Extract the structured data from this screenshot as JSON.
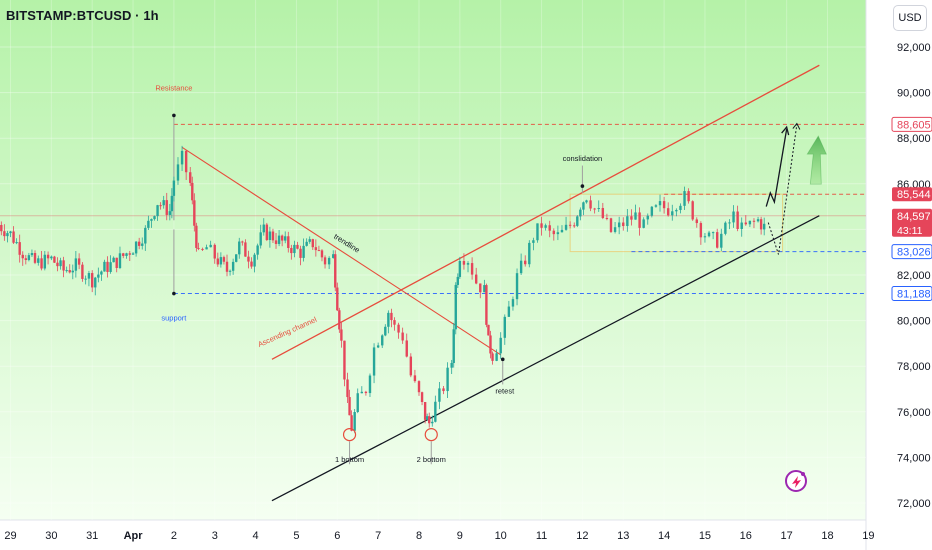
{
  "header": {
    "title": "BITSTAMP:BTCUSD · 1h"
  },
  "toolbar": {
    "currency_label": "USD"
  },
  "colors": {
    "up": "#26a69a",
    "down": "#e5455a",
    "resistance": "#e74c3c",
    "support": "#2962ff",
    "channel_upper": "#e74c3c",
    "channel_lower": "#131722",
    "trendline": "#e74c3c",
    "background_top": "#b5f2a8",
    "background_bottom": "#f5fff2"
  },
  "chart_data": {
    "type": "candlestick",
    "title": "BITSTAMP:BTCUSD · 1h",
    "ylim": [
      71000,
      93500
    ],
    "y_ticks": [
      "92,000",
      "90,000",
      "88,000",
      "86,000",
      "84,000",
      "82,000",
      "80,000",
      "78,000",
      "76,000",
      "74,000",
      "72,000"
    ],
    "x_ticks": [
      "29",
      "30",
      "31",
      "Apr",
      "2",
      "3",
      "4",
      "5",
      "6",
      "7",
      "8",
      "9",
      "10",
      "11",
      "12",
      "13",
      "14",
      "15",
      "16",
      "17",
      "18",
      "19"
    ],
    "series": [
      {
        "points": [
          [
            28.7,
            84200
          ],
          [
            29.0,
            83800
          ],
          [
            29.3,
            83000
          ],
          [
            29.6,
            82500
          ],
          [
            30.0,
            82700
          ],
          [
            30.3,
            82200
          ],
          [
            30.6,
            82400
          ],
          [
            31.0,
            81800
          ],
          [
            31.3,
            82300
          ],
          [
            31.6,
            82600
          ],
          [
            32.0,
            83200
          ],
          [
            32.3,
            83900
          ],
          [
            32.6,
            85200
          ],
          [
            32.9,
            84800
          ],
          [
            33.0,
            86200
          ],
          [
            33.2,
            87100
          ],
          [
            33.4,
            86000
          ],
          [
            33.5,
            84200
          ],
          [
            33.6,
            82800
          ],
          [
            33.8,
            83200
          ],
          [
            34.0,
            82800
          ],
          [
            34.3,
            82200
          ],
          [
            34.6,
            83300
          ],
          [
            34.9,
            82700
          ],
          [
            35.2,
            83900
          ],
          [
            35.5,
            83600
          ],
          [
            35.8,
            83300
          ],
          [
            36.1,
            83000
          ],
          [
            36.4,
            83400
          ],
          [
            36.7,
            82600
          ],
          [
            36.9,
            82800
          ],
          [
            37.0,
            80800
          ],
          [
            37.1,
            79000
          ],
          [
            37.25,
            76300
          ],
          [
            37.35,
            75300
          ],
          [
            37.5,
            76500
          ],
          [
            37.7,
            77000
          ],
          [
            37.9,
            78800
          ],
          [
            38.1,
            79600
          ],
          [
            38.25,
            80400
          ],
          [
            38.4,
            79700
          ],
          [
            38.6,
            79300
          ],
          [
            38.8,
            77600
          ],
          [
            39.0,
            76700
          ],
          [
            39.15,
            75800
          ],
          [
            39.25,
            75500
          ],
          [
            39.4,
            76300
          ],
          [
            39.6,
            77100
          ],
          [
            39.8,
            78200
          ],
          [
            39.9,
            81500
          ],
          [
            40.0,
            82900
          ],
          [
            40.2,
            82700
          ],
          [
            40.4,
            81700
          ],
          [
            40.6,
            81300
          ],
          [
            40.7,
            79000
          ],
          [
            40.8,
            78500
          ],
          [
            41.0,
            79200
          ],
          [
            41.2,
            80500
          ],
          [
            41.4,
            81900
          ],
          [
            41.6,
            82700
          ],
          [
            41.8,
            83700
          ],
          [
            42.0,
            84200
          ],
          [
            42.2,
            83800
          ],
          [
            42.4,
            83700
          ],
          [
            42.6,
            84000
          ],
          [
            42.8,
            84400
          ],
          [
            42.95,
            85100
          ],
          [
            43.1,
            85500
          ],
          [
            43.3,
            84900
          ],
          [
            43.5,
            84500
          ],
          [
            43.7,
            83900
          ],
          [
            43.9,
            84100
          ],
          [
            44.1,
            84400
          ],
          [
            44.3,
            84600
          ],
          [
            44.5,
            84100
          ],
          [
            44.7,
            84700
          ],
          [
            44.9,
            85000
          ],
          [
            45.1,
            84900
          ],
          [
            45.3,
            85200
          ],
          [
            45.5,
            85400
          ],
          [
            45.7,
            84700
          ],
          [
            45.9,
            84000
          ],
          [
            46.1,
            83600
          ],
          [
            46.3,
            83500
          ],
          [
            46.5,
            84000
          ],
          [
            46.7,
            84600
          ],
          [
            46.9,
            84000
          ],
          [
            47.1,
            84200
          ],
          [
            47.3,
            84400
          ],
          [
            47.45,
            84100
          ]
        ]
      }
    ],
    "price_labels": [
      {
        "value": 88605,
        "label": "88,605",
        "kind": "resistance"
      },
      {
        "value": 85544,
        "label": "85,544",
        "kind": "resistance"
      },
      {
        "value": 84597,
        "label": "84,597",
        "kind": "current",
        "countdown": "43:11"
      },
      {
        "value": 83026,
        "label": "83,026",
        "kind": "support"
      },
      {
        "value": 81188,
        "label": "81,188",
        "kind": "support"
      }
    ],
    "annotations": [
      {
        "text": "Resistance",
        "x": 33.0,
        "y": 90100,
        "color": "#e74c3c"
      },
      {
        "text": "support",
        "x": 33.0,
        "y": 80000,
        "color": "#2962ff"
      },
      {
        "text": "trendline",
        "x": 37.2,
        "y": 83300,
        "color": "#131722",
        "rotate": 32
      },
      {
        "text": "Ascending channel",
        "x": 35.8,
        "y": 79400,
        "color": "#e74c3c",
        "rotate": -24
      },
      {
        "text": "conslidation",
        "x": 43.0,
        "y": 87000,
        "color": "#131722"
      },
      {
        "text": "retest",
        "x": 41.1,
        "y": 76800,
        "color": "#131722"
      },
      {
        "text": "1 bottom",
        "x": 37.3,
        "y": 73800,
        "color": "#131722"
      },
      {
        "text": "2 bottom",
        "x": 39.3,
        "y": 73800,
        "color": "#131722"
      }
    ]
  }
}
